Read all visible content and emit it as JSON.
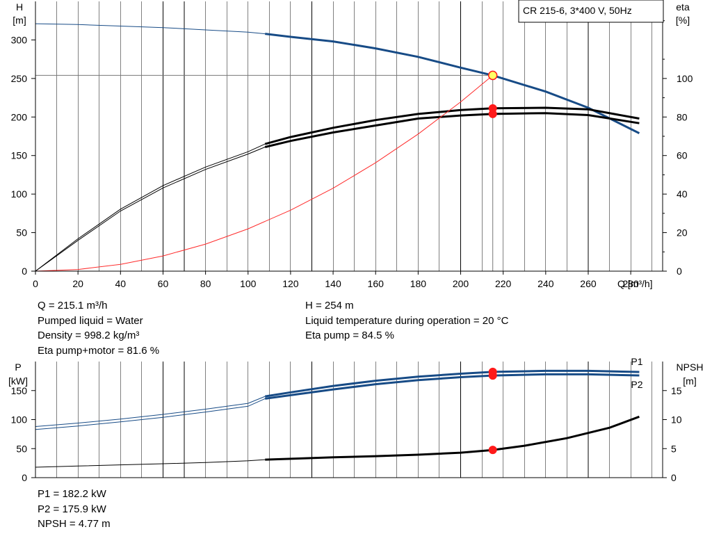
{
  "title": "CR 215-6, 3*400 V, 50Hz",
  "info_top_left": [
    "Q = 215.1 m³/h",
    "Pumped liquid = Water",
    "Density = 998.2 kg/m³",
    "Eta pump+motor = 81.6 %"
  ],
  "info_top_right": [
    "H = 254 m",
    "Liquid temperature during operation = 20 °C",
    "Eta pump = 84.5 %"
  ],
  "info_bottom": [
    "P1 = 182.2 kW",
    "P2 = 175.9 kW",
    "NPSH = 4.77 m"
  ],
  "colors": {
    "curve_blue": "#174b86",
    "curve_black": "#000000",
    "system_curve": "#ff2a2a",
    "marker": "#ff1a1a",
    "operating_point_fill": "#ffff66",
    "grid": "#000000"
  },
  "chart_data": [
    {
      "type": "line",
      "name_top": "head-efficiency",
      "xlabel": "Q [m³/h]",
      "ylabel_left": [
        "H",
        "[m]"
      ],
      "ylabel_right": [
        "eta",
        "[%]"
      ],
      "xlim": [
        0,
        295
      ],
      "ylim_left": [
        0,
        350
      ],
      "ylim_right": [
        0,
        140
      ],
      "x_ticks": [
        0,
        20,
        40,
        60,
        80,
        100,
        120,
        140,
        160,
        180,
        200,
        220,
        240,
        260,
        280
      ],
      "y_ticks_left": [
        0,
        50,
        100,
        150,
        200,
        250,
        300
      ],
      "y_ticks_right": [
        0,
        20,
        40,
        60,
        80,
        100
      ],
      "grid": "vertical",
      "series": [
        {
          "id": "head",
          "axis": "left",
          "color": "blue",
          "x": [
            0,
            20,
            40,
            60,
            80,
            100,
            108,
            120,
            140,
            160,
            180,
            200,
            215.1,
            240,
            260,
            284
          ],
          "y": [
            321,
            320,
            318,
            316,
            313,
            310,
            308,
            304,
            298,
            289,
            278,
            264,
            254,
            233,
            212,
            179
          ],
          "operating_range_from": 108
        },
        {
          "id": "eta-pump",
          "axis": "right",
          "color": "black",
          "x": [
            0,
            20,
            40,
            60,
            80,
            100,
            108,
            120,
            140,
            160,
            180,
            200,
            215.1,
            240,
            260,
            284
          ],
          "y": [
            0,
            16.8,
            32.2,
            44.4,
            54.0,
            62.0,
            66.0,
            69.6,
            74.4,
            78.4,
            81.6,
            83.6,
            84.5,
            84.8,
            84.0,
            79.2
          ],
          "operating_range_from": 108
        },
        {
          "id": "eta-pump-motor",
          "axis": "right",
          "color": "black",
          "x": [
            0,
            20,
            40,
            60,
            80,
            100,
            108,
            120,
            140,
            160,
            180,
            200,
            215.1,
            240,
            260,
            284
          ],
          "y": [
            0,
            16.0,
            31.2,
            43.2,
            52.8,
            60.8,
            64.4,
            67.6,
            72.0,
            75.6,
            79.2,
            80.8,
            81.6,
            82.0,
            81.0,
            76.8
          ],
          "operating_range_from": 108
        },
        {
          "id": "system-curve",
          "axis": "left",
          "color": "red",
          "x": [
            0,
            20,
            40,
            60,
            80,
            100,
            120,
            140,
            160,
            180,
            200,
            215.1
          ],
          "y": [
            0,
            2.2,
            8.8,
            19.8,
            35.1,
            54.9,
            79.1,
            107.6,
            140.6,
            177.9,
            219.6,
            254
          ]
        }
      ],
      "operating_point": {
        "x": 215.1,
        "y": 254
      },
      "markers": [
        {
          "series": "eta-pump",
          "x": 215.1,
          "y": 84.5
        },
        {
          "series": "eta-pump-motor",
          "x": 215.1,
          "y": 81.6
        }
      ]
    },
    {
      "type": "line",
      "name_top": "power-npsh",
      "ylabel_left": [
        "P",
        "[kW]"
      ],
      "ylabel_right": [
        "NPSH",
        "[m]"
      ],
      "xlim": [
        0,
        295
      ],
      "ylim_left": [
        0,
        200
      ],
      "ylim_right": [
        0,
        20
      ],
      "y_ticks_left": [
        0,
        50,
        100,
        150
      ],
      "y_ticks_right": [
        0,
        5,
        10,
        15
      ],
      "grid": "vertical",
      "series": [
        {
          "name": "P1",
          "axis": "left",
          "color": "blue",
          "x": [
            0,
            20,
            40,
            60,
            80,
            100,
            108,
            120,
            140,
            160,
            180,
            200,
            215.1,
            240,
            260,
            284
          ],
          "y": [
            88,
            94,
            101,
            109,
            118,
            128,
            140,
            147,
            158,
            167,
            174,
            179,
            182.2,
            184,
            184,
            182
          ],
          "operating_range_from": 108
        },
        {
          "name": "P2",
          "axis": "left",
          "color": "blue",
          "x": [
            0,
            20,
            40,
            60,
            80,
            100,
            108,
            120,
            140,
            160,
            180,
            200,
            215.1,
            240,
            260,
            284
          ],
          "y": [
            83,
            89,
            96,
            104,
            113,
            123,
            136,
            142,
            152,
            161,
            168,
            173,
            175.9,
            178,
            178,
            176
          ],
          "operating_range_from": 108
        },
        {
          "id": "npsh",
          "axis": "right",
          "color": "black",
          "x": [
            0,
            20,
            40,
            60,
            80,
            100,
            108,
            120,
            140,
            160,
            180,
            200,
            215.1,
            230,
            250,
            270,
            284
          ],
          "y": [
            1.8,
            2.0,
            2.2,
            2.4,
            2.6,
            2.9,
            3.1,
            3.25,
            3.5,
            3.7,
            3.95,
            4.3,
            4.77,
            5.5,
            6.8,
            8.6,
            10.5
          ],
          "operating_range_from": 108
        }
      ],
      "markers": [
        {
          "series": "P1",
          "x": 215.1,
          "y": 182.2
        },
        {
          "series": "P2",
          "x": 215.1,
          "y": 175.9
        },
        {
          "series": "npsh",
          "x": 215.1,
          "y": 4.77
        }
      ]
    }
  ]
}
